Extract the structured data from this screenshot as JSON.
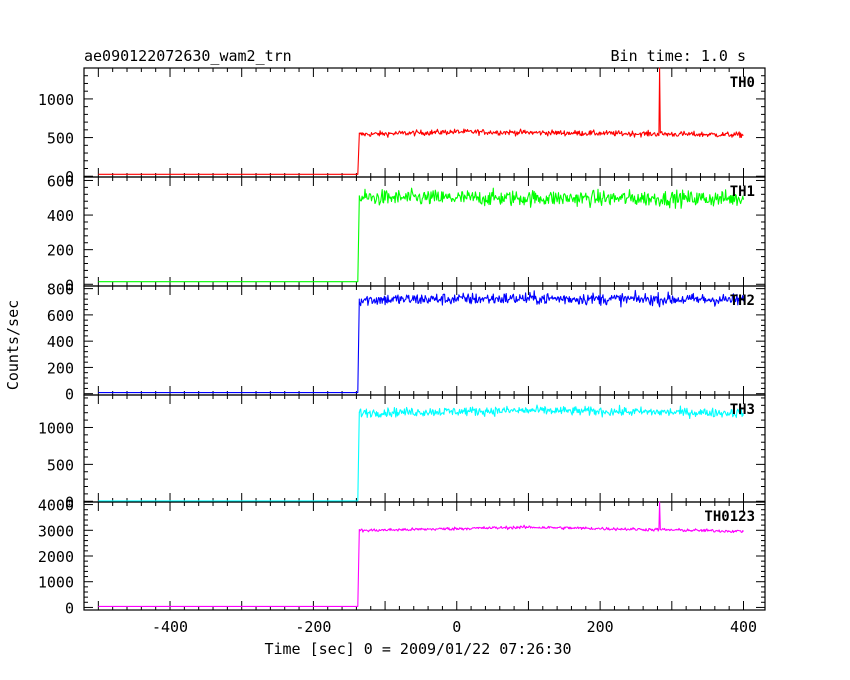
{
  "chart_data": {
    "type": "line",
    "title": "ae090122072630_wam2_trn",
    "subtitle": "Bin time: 1.0 s",
    "xlabel": "Time [sec] 0 = 2009/01/22 07:26:30",
    "ylabel": "Counts/sec",
    "xlim": [
      -520,
      430
    ],
    "x_ticks": [
      -400,
      -200,
      0,
      200,
      400
    ],
    "grid": false,
    "panels": [
      {
        "name": "TH0",
        "color": "#ff0000",
        "ylim": [
          -10,
          1400
        ],
        "y_ticks": [
          0,
          500,
          1000
        ],
        "segments": [
          {
            "x": [
              -500,
              -138
            ],
            "y": [
              25,
              25
            ]
          },
          {
            "x": [
              -138,
              -136
            ],
            "y": [
              25,
              540
            ]
          },
          {
            "x": [
              -136,
              400
            ],
            "y": [
              540,
              540
            ]
          }
        ],
        "noise": 35,
        "noise_range": [
          -136,
          400
        ],
        "trend": [
          [
            -136,
            540
          ],
          [
            0,
            575
          ],
          [
            400,
            535
          ]
        ],
        "spikes": [
          {
            "x": 283,
            "y": 1400
          }
        ]
      },
      {
        "name": "TH1",
        "color": "#00ff00",
        "ylim": [
          -10,
          620
        ],
        "y_ticks": [
          0,
          200,
          400,
          600
        ],
        "segments": [
          {
            "x": [
              -500,
              -138
            ],
            "y": [
              15,
              15
            ]
          },
          {
            "x": [
              -138,
              -136
            ],
            "y": [
              15,
              500
            ]
          },
          {
            "x": [
              -136,
              400
            ],
            "y": [
              500,
              500
            ]
          }
        ],
        "noise": 45,
        "noise_range": [
          -136,
          400
        ],
        "trend": [
          [
            -136,
            500
          ],
          [
            400,
            495
          ]
        ],
        "spikes": []
      },
      {
        "name": "TH2",
        "color": "#0000ff",
        "ylim": [
          -10,
          820
        ],
        "y_ticks": [
          0,
          200,
          400,
          600,
          800
        ],
        "segments": [
          {
            "x": [
              -500,
              -138
            ],
            "y": [
              8,
              8
            ]
          },
          {
            "x": [
              -138,
              -136
            ],
            "y": [
              8,
              720
            ]
          },
          {
            "x": [
              -136,
              400
            ],
            "y": [
              720,
              720
            ]
          }
        ],
        "noise": 45,
        "noise_range": [
          -136,
          400
        ],
        "trend": [
          [
            -136,
            715
          ],
          [
            100,
            725
          ],
          [
            400,
            715
          ]
        ],
        "spikes": []
      },
      {
        "name": "TH3",
        "color": "#00ffff",
        "ylim": [
          -10,
          1440
        ],
        "y_ticks": [
          0,
          500,
          1000
        ],
        "segments": [
          {
            "x": [
              -500,
              -138
            ],
            "y": [
              5,
              5
            ]
          },
          {
            "x": [
              -138,
              -136
            ],
            "y": [
              5,
              1210
            ]
          },
          {
            "x": [
              -136,
              400
            ],
            "y": [
              1210,
              1210
            ]
          }
        ],
        "noise": 60,
        "noise_range": [
          -136,
          400
        ],
        "trend": [
          [
            -136,
            1200
          ],
          [
            100,
            1230
          ],
          [
            400,
            1195
          ]
        ],
        "spikes": []
      },
      {
        "name": "TH0123",
        "color": "#ff00ff",
        "ylim": [
          -100,
          4100
        ],
        "y_ticks": [
          0,
          1000,
          2000,
          3000,
          4000
        ],
        "segments": [
          {
            "x": [
              -500,
              -138
            ],
            "y": [
              40,
              40
            ]
          },
          {
            "x": [
              -138,
              -136
            ],
            "y": [
              40,
              3000
            ]
          },
          {
            "x": [
              -136,
              400
            ],
            "y": [
              3000,
              3000
            ]
          }
        ],
        "noise": 60,
        "noise_range": [
          -136,
          400
        ],
        "trend": [
          [
            -136,
            2990
          ],
          [
            100,
            3120
          ],
          [
            400,
            2960
          ]
        ],
        "spikes": [
          {
            "x": 283,
            "y": 4100
          }
        ]
      }
    ]
  }
}
